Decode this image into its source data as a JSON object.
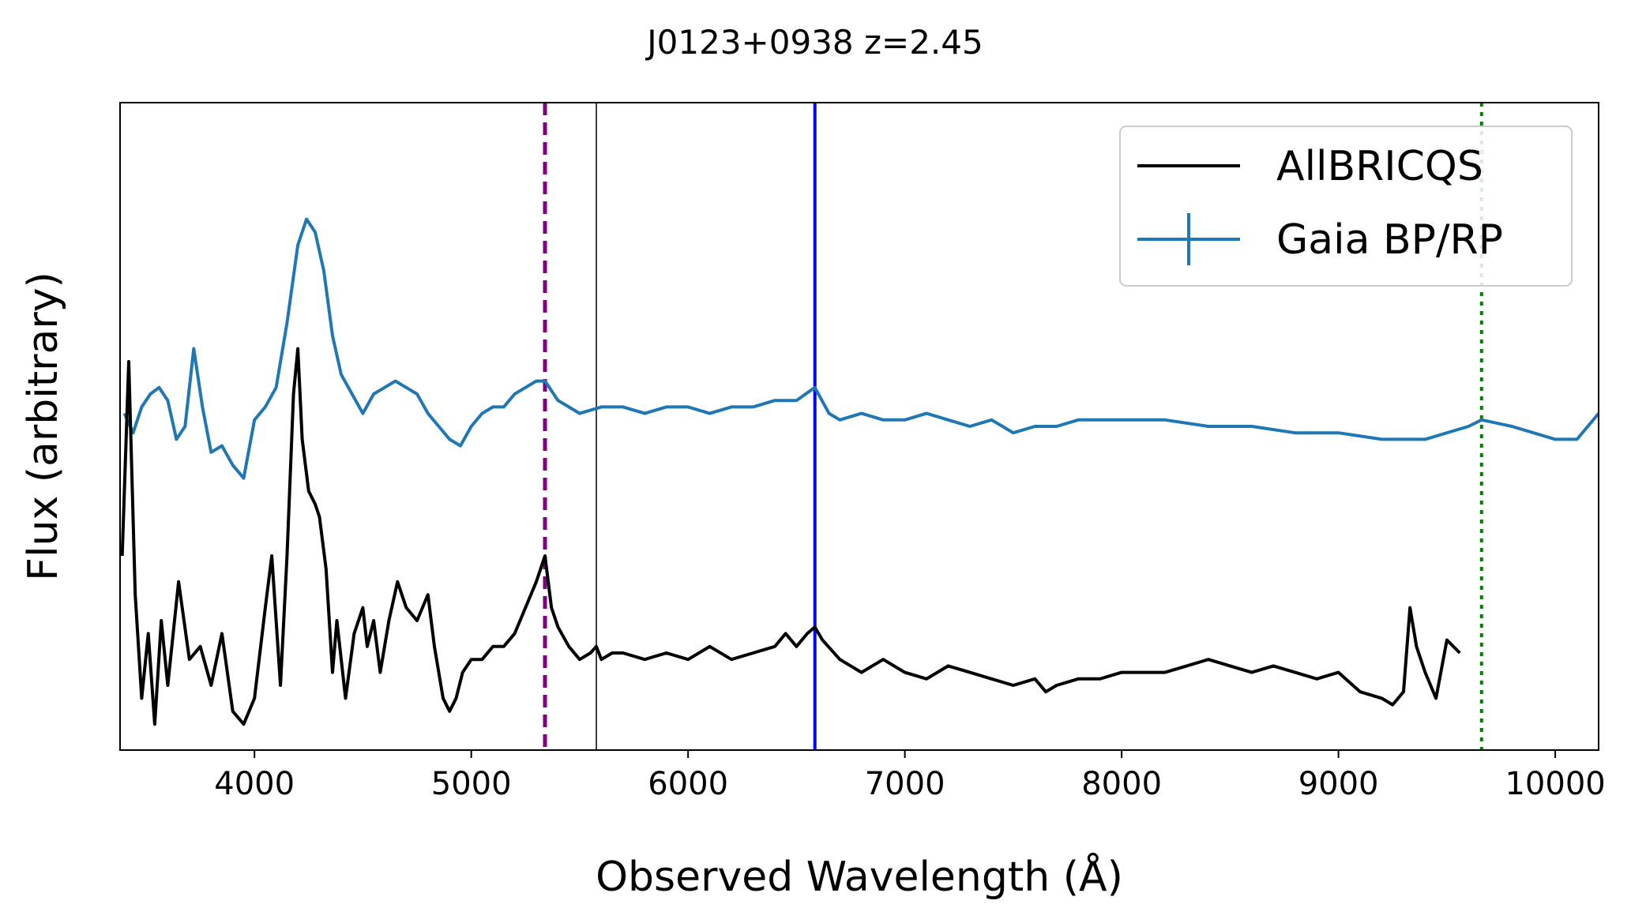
{
  "chart_data": {
    "type": "line",
    "title": "J0123+0938 z=2.45",
    "xlabel": "Observed Wavelength (Å)",
    "ylabel": "Flux (arbitrary)",
    "xlim": [
      3380,
      10200
    ],
    "ylim": [
      0,
      100
    ],
    "grid": false,
    "legend_position": "upper-right",
    "xticks": [
      4000,
      5000,
      6000,
      7000,
      8000,
      9000,
      10000
    ],
    "xtick_labels": [
      "4000",
      "5000",
      "6000",
      "7000",
      "8000",
      "9000",
      "10000"
    ],
    "yticks_shown": false,
    "vertical_lines": [
      {
        "name": "purple-dashed-line",
        "x": 5340,
        "color": "#800080",
        "style": "dashed"
      },
      {
        "name": "thin-black-line",
        "x": 5577,
        "color": "#000000",
        "style": "solid-thin"
      },
      {
        "name": "blue-line",
        "x": 6585,
        "color": "#0000ff",
        "style": "solid"
      },
      {
        "name": "green-dotted-line",
        "x": 9660,
        "color": "#008000",
        "style": "dotted"
      }
    ],
    "series": [
      {
        "name": "AllBRICQS",
        "legend_label": "AllBRICQS",
        "color": "#000000",
        "x": [
          3390,
          3420,
          3450,
          3480,
          3510,
          3540,
          3570,
          3600,
          3650,
          3700,
          3750,
          3800,
          3850,
          3900,
          3950,
          4000,
          4050,
          4080,
          4120,
          4150,
          4180,
          4200,
          4220,
          4250,
          4280,
          4300,
          4330,
          4360,
          4380,
          4420,
          4460,
          4500,
          4520,
          4550,
          4580,
          4620,
          4660,
          4700,
          4750,
          4800,
          4830,
          4870,
          4900,
          4930,
          4960,
          5000,
          5050,
          5100,
          5150,
          5200,
          5250,
          5300,
          5340,
          5370,
          5400,
          5450,
          5500,
          5550,
          5577,
          5600,
          5650,
          5700,
          5800,
          5900,
          6000,
          6100,
          6200,
          6300,
          6400,
          6450,
          6500,
          6550,
          6585,
          6620,
          6700,
          6800,
          6900,
          7000,
          7100,
          7200,
          7300,
          7400,
          7500,
          7600,
          7650,
          7700,
          7800,
          7900,
          8000,
          8100,
          8200,
          8300,
          8400,
          8500,
          8600,
          8700,
          8800,
          8900,
          9000,
          9100,
          9200,
          9250,
          9300,
          9330,
          9360,
          9400,
          9450,
          9500,
          9560
        ],
        "values": [
          30,
          60,
          24,
          8,
          18,
          4,
          20,
          10,
          26,
          14,
          16,
          10,
          18,
          6,
          4,
          8,
          22,
          30,
          10,
          30,
          55,
          62,
          48,
          40,
          38,
          36,
          28,
          12,
          20,
          8,
          18,
          22,
          16,
          20,
          12,
          20,
          26,
          22,
          20,
          24,
          16,
          8,
          6,
          8,
          12,
          14,
          14,
          16,
          16,
          18,
          22,
          26,
          30,
          22,
          19,
          16,
          14,
          15,
          16,
          14,
          15,
          15,
          14,
          15,
          14,
          16,
          14,
          15,
          16,
          18,
          16,
          18,
          19,
          17,
          14,
          12,
          14,
          12,
          11,
          13,
          12,
          11,
          10,
          11,
          9,
          10,
          11,
          11,
          12,
          12,
          12,
          13,
          14,
          13,
          12,
          13,
          12,
          11,
          12,
          9,
          8,
          7,
          9,
          22,
          16,
          12,
          8,
          17,
          15
        ]
      },
      {
        "name": "Gaia BP/RP",
        "legend_label": "Gaia BP/RP",
        "color": "#1f77b4",
        "x": [
          3400,
          3440,
          3480,
          3520,
          3560,
          3600,
          3640,
          3680,
          3720,
          3760,
          3800,
          3850,
          3900,
          3950,
          4000,
          4050,
          4100,
          4150,
          4200,
          4240,
          4280,
          4320,
          4360,
          4400,
          4450,
          4500,
          4550,
          4600,
          4650,
          4700,
          4750,
          4800,
          4850,
          4900,
          4950,
          5000,
          5050,
          5100,
          5150,
          5200,
          5250,
          5300,
          5340,
          5400,
          5450,
          5500,
          5600,
          5700,
          5800,
          5900,
          6000,
          6100,
          6200,
          6300,
          6400,
          6500,
          6585,
          6650,
          6700,
          6800,
          6900,
          7000,
          7100,
          7200,
          7300,
          7400,
          7500,
          7600,
          7700,
          7800,
          7900,
          8000,
          8200,
          8400,
          8600,
          8800,
          9000,
          9200,
          9400,
          9600,
          9660,
          9800,
          10000,
          10100,
          10200
        ],
        "values": [
          52,
          49,
          53,
          55,
          56,
          54,
          48,
          50,
          62,
          53,
          46,
          47,
          44,
          42,
          51,
          53,
          56,
          66,
          78,
          82,
          80,
          74,
          64,
          58,
          55,
          52,
          55,
          56,
          57,
          56,
          55,
          52,
          50,
          48,
          47,
          50,
          52,
          53,
          53,
          55,
          56,
          57,
          57,
          54,
          53,
          52,
          53,
          53,
          52,
          53,
          53,
          52,
          53,
          53,
          54,
          54,
          56,
          52,
          51,
          52,
          51,
          51,
          52,
          51,
          50,
          51,
          49,
          50,
          50,
          51,
          51,
          51,
          51,
          50,
          50,
          49,
          49,
          48,
          48,
          50,
          51,
          50,
          48,
          48,
          52
        ]
      }
    ]
  }
}
